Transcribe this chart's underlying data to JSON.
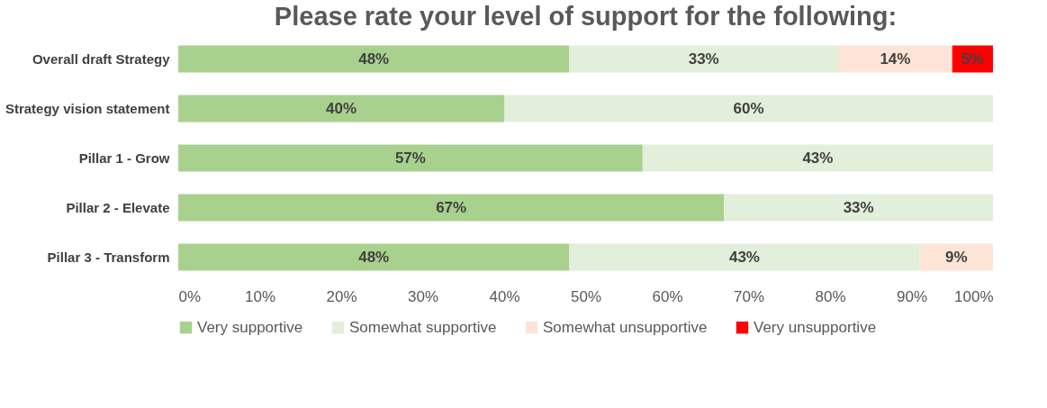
{
  "chart_data": {
    "type": "bar",
    "orientation": "horizontal",
    "stacked": true,
    "title": "Please rate your level of support for the following:",
    "categories": [
      "Overall draft Strategy",
      "Strategy vision statement",
      "Pillar 1 - Grow",
      "Pillar 2 - Elevate",
      "Pillar 3 - Transform"
    ],
    "series": [
      {
        "name": "Very supportive",
        "color": "#a9d18e",
        "values": [
          48,
          40,
          57,
          67,
          48
        ],
        "value_labels": [
          "48%",
          "40%",
          "57%",
          "67%",
          "48%"
        ]
      },
      {
        "name": "Somewhat supportive",
        "color": "#e2efda",
        "values": [
          33,
          60,
          43,
          33,
          43
        ],
        "value_labels": [
          "33%",
          "60%",
          "43%",
          "33%",
          "43%"
        ]
      },
      {
        "name": "Somewhat unsupportive",
        "color": "#fce4d6",
        "values": [
          14,
          null,
          null,
          null,
          9
        ],
        "value_labels": [
          "14%",
          null,
          null,
          null,
          "9%"
        ]
      },
      {
        "name": "Very unsupportive",
        "color": "#ff0000",
        "values": [
          5,
          null,
          null,
          null,
          null
        ],
        "value_labels": [
          "5%",
          null,
          null,
          null,
          null
        ]
      }
    ],
    "xlim": [
      0,
      100
    ],
    "xticks": [
      {
        "value": 0,
        "label": "0%"
      },
      {
        "value": 10,
        "label": "10%"
      },
      {
        "value": 20,
        "label": "20%"
      },
      {
        "value": 30,
        "label": "30%"
      },
      {
        "value": 40,
        "label": "40%"
      },
      {
        "value": 50,
        "label": "50%"
      },
      {
        "value": 60,
        "label": "60%"
      },
      {
        "value": 70,
        "label": "70%"
      },
      {
        "value": 80,
        "label": "80%"
      },
      {
        "value": 90,
        "label": "90%"
      },
      {
        "value": 100,
        "label": "100%"
      }
    ],
    "grid": false,
    "legend": "bottom"
  }
}
